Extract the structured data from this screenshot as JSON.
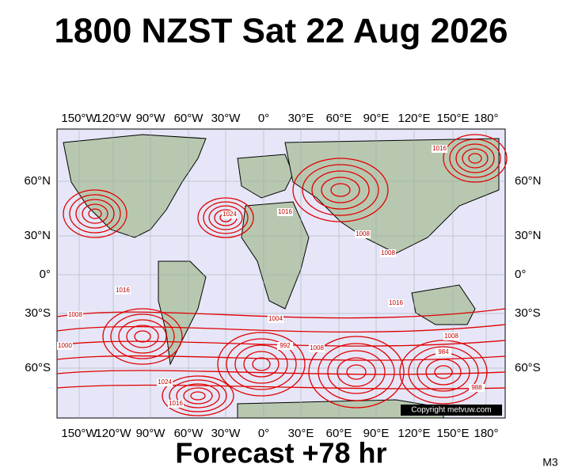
{
  "title": "1800 NZST Sat 22 Aug 2026",
  "longitude_labels": [
    "150°W",
    "120°W",
    "90°W",
    "60°W",
    "30°W",
    "0°",
    "30°E",
    "60°E",
    "90°E",
    "120°E",
    "150°E",
    "180°"
  ],
  "latitude_labels": [
    "60°N",
    "30°N",
    "0°",
    "30°S",
    "60°S"
  ],
  "isobar_labels": [
    "1016",
    "1024",
    "1016",
    "1008",
    "1008",
    "1016",
    "1008",
    "1004",
    "1016",
    "1008",
    "992",
    "984",
    "1000",
    "1024",
    "1008",
    "1016",
    "988"
  ],
  "copyright": "Copyright metvuw.com",
  "forecast": "Forecast +78 hr",
  "model": "M3"
}
